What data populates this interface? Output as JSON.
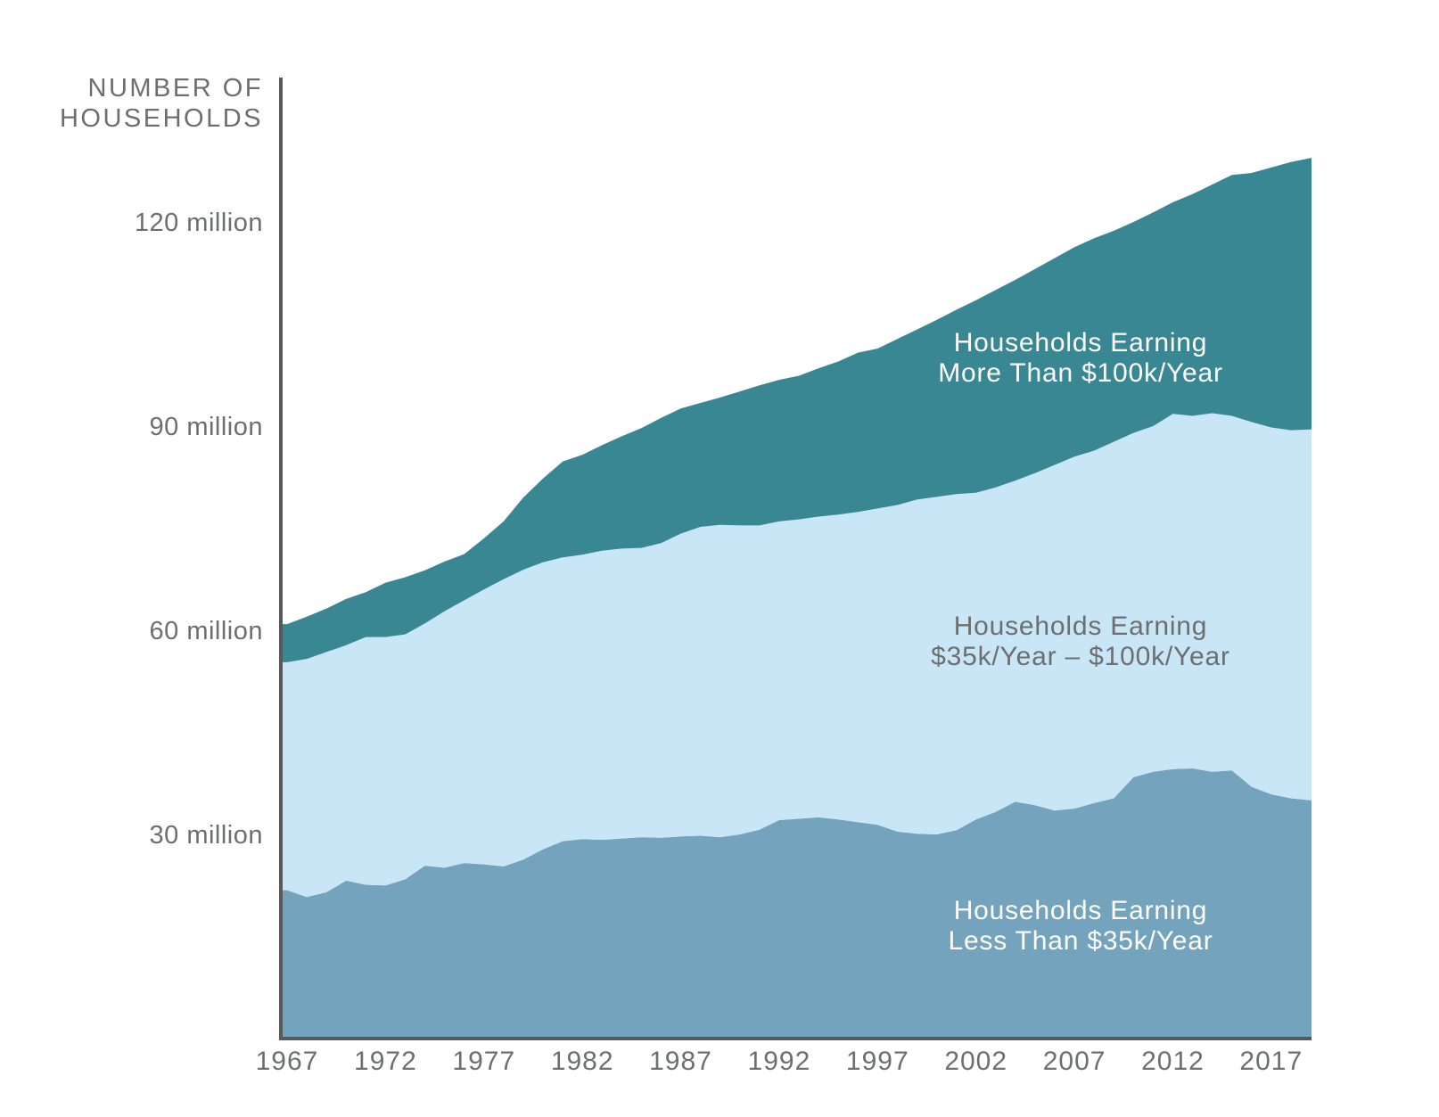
{
  "chart_data": {
    "type": "area",
    "stacked": true,
    "unit": "millions of households",
    "axis_title": {
      "line1": "NUMBER OF",
      "line2": "HOUSEHOLDS"
    },
    "background": "#FFFFFF",
    "axis_color": "#58595B",
    "text_color": "#6D6E71",
    "grid": false,
    "legend_position": "labels-inside-areas",
    "xlim": [
      1967,
      2019
    ],
    "ylim": [
      0,
      135
    ],
    "x_ticks": [
      "1967",
      "1972",
      "1977",
      "1982",
      "1987",
      "1992",
      "1997",
      "2002",
      "2007",
      "2012",
      "2017"
    ],
    "y_ticks": [
      {
        "value": 120,
        "label": "120 million"
      },
      {
        "value": 90,
        "label": "90 million"
      },
      {
        "value": 60,
        "label": "60 million"
      },
      {
        "value": 30,
        "label": "30 million"
      }
    ],
    "years": [
      1967,
      1968,
      1969,
      1970,
      1971,
      1972,
      1973,
      1974,
      1975,
      1976,
      1977,
      1978,
      1979,
      1980,
      1981,
      1982,
      1983,
      1984,
      1985,
      1986,
      1987,
      1988,
      1989,
      1990,
      1991,
      1992,
      1993,
      1994,
      1995,
      1996,
      1997,
      1998,
      1999,
      2000,
      2001,
      2002,
      2003,
      2004,
      2005,
      2006,
      2007,
      2008,
      2009,
      2010,
      2011,
      2012,
      2013,
      2014,
      2015,
      2016,
      2017,
      2018,
      2019
    ],
    "series": [
      {
        "id": "less-than-35k",
        "name": "Households Earning Less Than $35k/Year",
        "label_line1": "Households Earning",
        "label_line2": "Less Than $35k/Year",
        "color": "#74A3BE",
        "label_color": "#FFFFFF",
        "values": [
          21.8,
          20.8,
          21.5,
          23.2,
          22.6,
          22.5,
          23.4,
          25.4,
          25.1,
          25.8,
          25.6,
          25.3,
          26.3,
          27.8,
          29.0,
          29.3,
          29.2,
          29.4,
          29.6,
          29.5,
          29.7,
          29.8,
          29.6,
          30.0,
          30.7,
          32.1,
          32.3,
          32.5,
          32.2,
          31.8,
          31.4,
          30.4,
          30.1,
          30.0,
          30.6,
          32.2,
          33.3,
          34.8,
          34.3,
          33.5,
          33.8,
          34.6,
          35.3,
          38.4,
          39.2,
          39.6,
          39.7,
          39.2,
          39.4,
          37.0,
          35.9,
          35.3,
          35.0
        ]
      },
      {
        "id": "35k-to-100k",
        "name": "Households Earning $35k/Year – $100k/Year",
        "label_line1": "Households Earning",
        "label_line2": "$35k/Year – $100k/Year",
        "color": "#C8E6F5",
        "label_color": "#6D6E71",
        "values": [
          33.5,
          35.0,
          35.3,
          34.6,
          36.4,
          36.5,
          36.0,
          35.6,
          37.7,
          38.6,
          40.4,
          42.2,
          42.6,
          42.2,
          41.7,
          41.8,
          42.5,
          42.6,
          42.5,
          43.3,
          44.5,
          45.4,
          45.9,
          45.4,
          44.7,
          43.9,
          44.0,
          44.2,
          44.8,
          45.6,
          46.5,
          48.0,
          49.1,
          49.6,
          49.4,
          48.0,
          47.7,
          47.2,
          48.8,
          50.8,
          51.7,
          51.8,
          52.4,
          50.6,
          50.8,
          52.2,
          51.8,
          52.7,
          52.1,
          53.6,
          53.9,
          54.1,
          54.5
        ]
      },
      {
        "id": "more-than-100k",
        "name": "Households Earning More Than $100k/Year",
        "label_line1": "Households Earning",
        "label_line2": "More Than $100k/Year",
        "color": "#3A8794",
        "label_color": "#FFFFFF",
        "values": [
          5.6,
          6.2,
          6.4,
          6.8,
          6.6,
          8.0,
          8.4,
          7.8,
          7.3,
          6.8,
          7.5,
          8.5,
          10.6,
          12.3,
          14.1,
          14.7,
          15.5,
          16.5,
          17.6,
          18.4,
          18.4,
          18.2,
          18.7,
          19.7,
          20.6,
          20.8,
          21.1,
          21.8,
          22.5,
          23.4,
          23.5,
          24.4,
          25.0,
          26.0,
          27.1,
          28.3,
          29.0,
          29.5,
          30.0,
          30.4,
          30.8,
          31.2,
          31.0,
          31.0,
          31.4,
          31.1,
          32.6,
          33.6,
          35.4,
          36.6,
          38.2,
          39.4,
          39.9
        ]
      }
    ]
  }
}
